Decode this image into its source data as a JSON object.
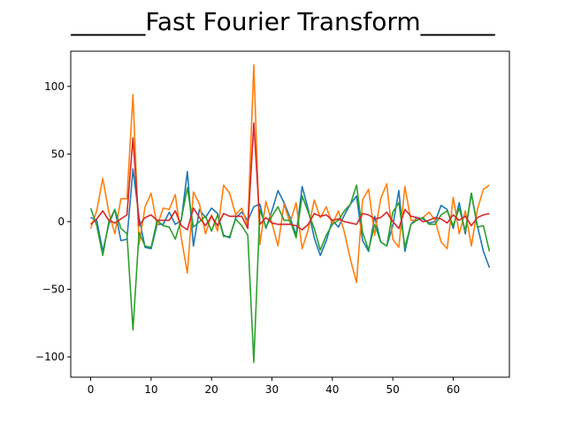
{
  "chart_data": {
    "type": "line",
    "title": "______Fast Fourier Transform______",
    "xlabel": "",
    "ylabel": "",
    "xlim": [
      -3.3,
      69.3
    ],
    "ylim": [
      -115,
      126
    ],
    "xticks": [
      0,
      10,
      20,
      30,
      40,
      50,
      60
    ],
    "yticks": [
      -100,
      -50,
      0,
      50,
      100
    ],
    "ytick_labels": [
      "−100",
      "−50",
      "0",
      "50",
      "100"
    ],
    "grid": false,
    "legend": "none",
    "x": [
      0,
      1,
      2,
      3,
      4,
      5,
      6,
      7,
      8,
      9,
      10,
      11,
      12,
      13,
      14,
      15,
      16,
      17,
      18,
      19,
      20,
      21,
      22,
      23,
      24,
      25,
      26,
      27,
      28,
      29,
      30,
      31,
      32,
      33,
      34,
      35,
      36,
      37,
      38,
      39,
      40,
      41,
      42,
      43,
      44,
      45,
      46,
      47,
      48,
      49,
      50,
      51,
      52,
      53,
      54,
      55,
      56,
      57,
      58,
      59,
      60,
      61,
      62,
      63,
      64,
      65,
      66
    ],
    "series": [
      {
        "color": "#1f77b4",
        "values": [
          3,
          1,
          -22,
          -2,
          9,
          -14,
          -13,
          39,
          3,
          -19,
          -20,
          -2,
          -2,
          7,
          -2,
          1,
          37,
          -18,
          9,
          3,
          10,
          6,
          -10,
          -12,
          3,
          7,
          1,
          11,
          13,
          -5,
          8,
          23,
          14,
          3,
          -10,
          26,
          9,
          -12,
          -25,
          -14,
          1,
          -4,
          5,
          13,
          19,
          -14,
          -22,
          4,
          -15,
          -18,
          -3,
          23,
          -22,
          -2,
          3,
          2,
          -1,
          0,
          12,
          9,
          -5,
          14,
          -9,
          21,
          -3,
          -22,
          -34
        ]
      },
      {
        "color": "#ff7f0e",
        "values": [
          -5,
          8,
          32,
          7,
          -9,
          17,
          17,
          94,
          -17,
          11,
          21,
          -3,
          10,
          9,
          20,
          -12,
          -38,
          22,
          13,
          -9,
          5,
          -7,
          27,
          21,
          5,
          10,
          -3,
          116,
          -17,
          15,
          -1,
          -18,
          13,
          -1,
          14,
          -20,
          -6,
          16,
          3,
          11,
          -2,
          8,
          -8,
          -28,
          -45,
          16,
          24,
          -10,
          17,
          28,
          -13,
          -19,
          26,
          1,
          1,
          3,
          7,
          1,
          -15,
          -20,
          18,
          -9,
          8,
          -18,
          9,
          24,
          27
        ]
      },
      {
        "color": "#2ca02c",
        "values": [
          10,
          -3,
          -25,
          0,
          9,
          -5,
          -9,
          -80,
          -8,
          -18,
          -19,
          1,
          -3,
          -4,
          -13,
          2,
          25,
          -4,
          0,
          4,
          -7,
          5,
          -11,
          -11,
          2,
          -3,
          -10,
          -104,
          9,
          -4,
          4,
          11,
          1,
          1,
          -12,
          19,
          7,
          -5,
          -21,
          -10,
          -2,
          1,
          8,
          13,
          27,
          -8,
          -21,
          -2,
          -15,
          -18,
          7,
          14,
          -19,
          -2,
          1,
          3,
          -2,
          -2,
          5,
          8,
          -3,
          10,
          -7,
          21,
          -4,
          -3,
          -22
        ]
      },
      {
        "color": "#d62728",
        "values": [
          -2,
          2,
          8,
          1,
          -1,
          2,
          5,
          62,
          -3,
          3,
          5,
          1,
          1,
          1,
          8,
          -3,
          -6,
          10,
          3,
          -3,
          4,
          -3,
          6,
          4,
          4,
          4,
          -5,
          73,
          -2,
          3,
          -1,
          -2,
          -2,
          -2,
          -3,
          -6,
          -2,
          6,
          4,
          5,
          1,
          2,
          0,
          -1,
          -2,
          6,
          5,
          2,
          3,
          7,
          0,
          -5,
          9,
          4,
          3,
          0,
          1,
          3,
          2,
          -1,
          5,
          1,
          4,
          -3,
          3,
          5,
          6
        ]
      }
    ]
  }
}
